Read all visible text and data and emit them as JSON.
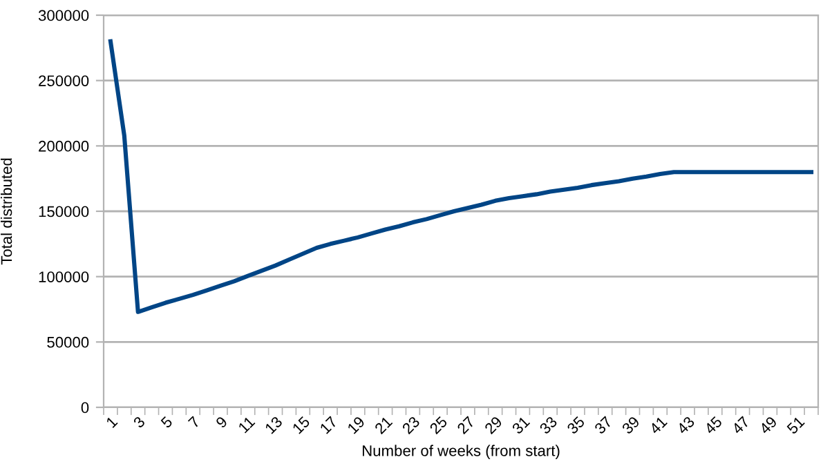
{
  "chart_data": {
    "type": "line",
    "xlabel": "Number of weeks (from start)",
    "ylabel": "Total distributed",
    "categories": [
      "1",
      null,
      "3",
      null,
      "5",
      null,
      "7",
      null,
      "9",
      null,
      "11",
      null,
      "13",
      null,
      "15",
      null,
      "17",
      null,
      "19",
      null,
      "21",
      null,
      "23",
      null,
      "25",
      null,
      "27",
      null,
      "29",
      null,
      "31",
      null,
      "33",
      null,
      "35",
      null,
      "37",
      null,
      "39",
      null,
      "41",
      null,
      "43",
      null,
      "45",
      null,
      "47",
      null,
      "49",
      null,
      "51",
      null
    ],
    "series": [
      {
        "color": "#004586",
        "values": [
          280000,
          208000,
          73000,
          76500,
          80000,
          83000,
          86000,
          89500,
          93000,
          96500,
          100500,
          104500,
          108500,
          113000,
          117500,
          122000,
          125000,
          127500,
          130000,
          133000,
          136000,
          138500,
          141500,
          144000,
          147000,
          150000,
          152500,
          155000,
          158000,
          160000,
          161500,
          163000,
          165000,
          166500,
          168000,
          170000,
          171500,
          173000,
          175000,
          176500,
          178500,
          180000,
          180000,
          180000,
          180000,
          180000,
          180000,
          180000,
          180000,
          180000,
          180000,
          180000
        ]
      }
    ],
    "ylim": [
      0,
      300000
    ],
    "yticks": [
      0,
      50000,
      100000,
      150000,
      200000,
      250000,
      300000
    ],
    "grid": "y",
    "legend": false,
    "marker": "none",
    "line_style": "solid"
  }
}
